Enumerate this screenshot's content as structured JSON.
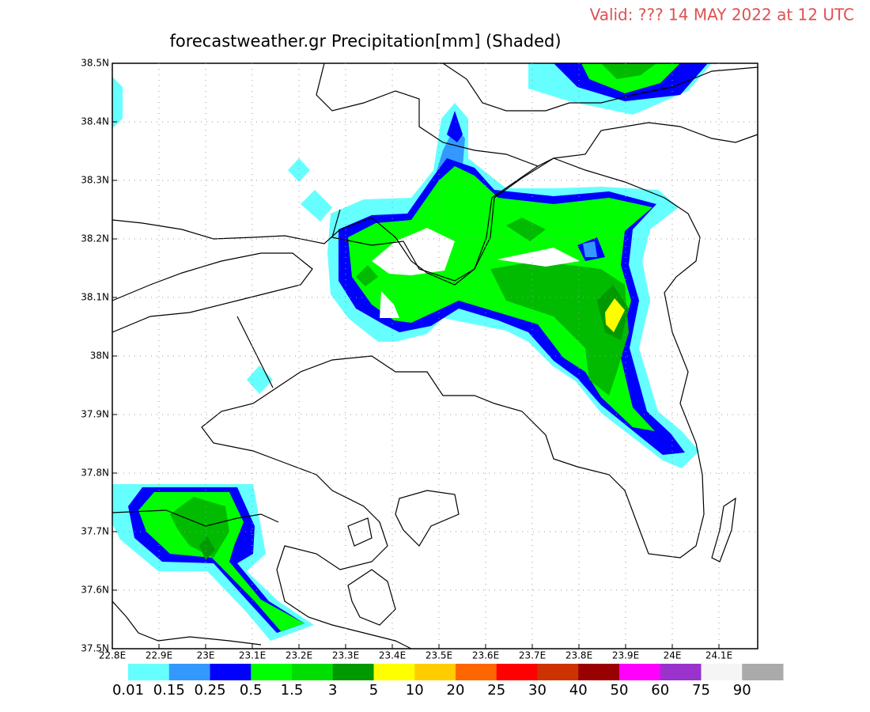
{
  "header": {
    "valid": "Valid: ??? 14 MAY 2022 at 12 UTC",
    "title": "forecastweather.gr Precipitation[mm] (Shaded)"
  },
  "axes": {
    "x_ticks": [
      {
        "value": 22.8,
        "label": "22.8E"
      },
      {
        "value": 22.9,
        "label": "22.9E"
      },
      {
        "value": 23.0,
        "label": "23E"
      },
      {
        "value": 23.1,
        "label": "23.1E"
      },
      {
        "value": 23.2,
        "label": "23.2E"
      },
      {
        "value": 23.3,
        "label": "23.3E"
      },
      {
        "value": 23.4,
        "label": "23.4E"
      },
      {
        "value": 23.5,
        "label": "23.5E"
      },
      {
        "value": 23.6,
        "label": "23.6E"
      },
      {
        "value": 23.7,
        "label": "23.7E"
      },
      {
        "value": 23.8,
        "label": "23.8E"
      },
      {
        "value": 23.9,
        "label": "23.9E"
      },
      {
        "value": 24.0,
        "label": "24E"
      },
      {
        "value": 24.1,
        "label": "24.1E"
      }
    ],
    "y_ticks": [
      {
        "value": 37.5,
        "label": "37.5N"
      },
      {
        "value": 37.6,
        "label": "37.6N"
      },
      {
        "value": 37.7,
        "label": "37.7N"
      },
      {
        "value": 37.8,
        "label": "37.8N"
      },
      {
        "value": 37.9,
        "label": "37.9N"
      },
      {
        "value": 38.0,
        "label": "38N"
      },
      {
        "value": 38.1,
        "label": "38.1N"
      },
      {
        "value": 38.2,
        "label": "38.2N"
      },
      {
        "value": 38.3,
        "label": "38.3N"
      },
      {
        "value": 38.4,
        "label": "38.4N"
      },
      {
        "value": 38.5,
        "label": "38.5N"
      }
    ]
  },
  "colorbar": {
    "levels": [
      0.01,
      0.15,
      0.25,
      0.5,
      1.5,
      3,
      5,
      10,
      20,
      25,
      30,
      40,
      50,
      60,
      75,
      90
    ],
    "colors": [
      "#66ffff",
      "#3399ff",
      "#0000ff",
      "#00ff00",
      "#00dd00",
      "#009900",
      "#ffff00",
      "#ffcc00",
      "#ff6600",
      "#ff0000",
      "#cc3300",
      "#990000",
      "#ff00ff",
      "#9933cc",
      "#f5f5f5",
      "#aaaaaa"
    ]
  }
}
